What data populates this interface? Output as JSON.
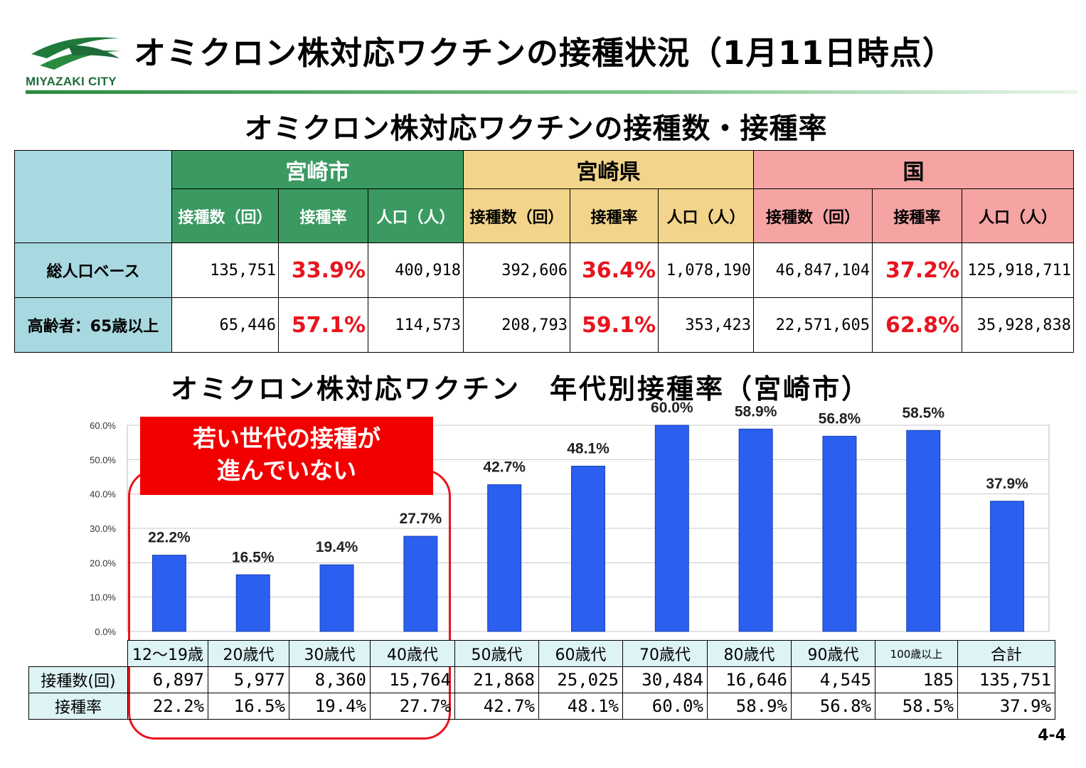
{
  "header": {
    "logo_text": "MIYAZAKI CITY",
    "title": "オミクロン株対応ワクチンの接種状況（1月11日時点）",
    "brand_color": "#2a8a3e"
  },
  "section1": {
    "title": "オミクロン株対応ワクチンの接種数・接種率",
    "groups": [
      "宮崎市",
      "宮崎県",
      "国"
    ],
    "group_colors": [
      "#3a9a62",
      "#f2d48a",
      "#f5a3a3"
    ],
    "col_headers": [
      "接種数（回）",
      "接種率",
      "人口（人）"
    ],
    "rows": [
      {
        "label": "総人口ベース",
        "city": [
          "135,751",
          "33.9%",
          "400,918"
        ],
        "pref": [
          "392,606",
          "36.4%",
          "1,078,190"
        ],
        "nation": [
          "46,847,104",
          "37.2%",
          "125,918,711"
        ]
      },
      {
        "label": "高齢者：65歳以上",
        "city": [
          "65,446",
          "57.1%",
          "114,573"
        ],
        "pref": [
          "208,793",
          "59.1%",
          "353,423"
        ],
        "nation": [
          "22,571,605",
          "62.8%",
          "35,928,838"
        ]
      }
    ]
  },
  "section2": {
    "title": "オミクロン株対応ワクチン　年代別接種率（宮崎市）",
    "callout_line1": "若い世代の接種が",
    "callout_line2": "進んでいない"
  },
  "chart_data": {
    "type": "bar",
    "categories": [
      "12～19歳",
      "20歳代",
      "30歳代",
      "40歳代",
      "50歳代",
      "60歳代",
      "70歳代",
      "80歳代",
      "90歳代",
      "100歳以上",
      "合計"
    ],
    "values": [
      22.2,
      16.5,
      19.4,
      27.7,
      42.7,
      48.1,
      60.0,
      58.9,
      56.8,
      58.5,
      37.9
    ],
    "data_labels": [
      "22.2%",
      "16.5%",
      "19.4%",
      "27.7%",
      "42.7%",
      "48.1%",
      "60.0%",
      "58.9%",
      "56.8%",
      "58.5%",
      "37.9%"
    ],
    "y_ticks": [
      "0.0%",
      "10.0%",
      "20.0%",
      "30.0%",
      "40.0%",
      "50.0%",
      "60.0%"
    ],
    "ylim": [
      0,
      60
    ],
    "bar_color": "#2b5ff0",
    "grid": true
  },
  "age_table": {
    "row_labels": [
      "接種数(回)",
      "接種率"
    ],
    "counts": [
      "6,897",
      "5,977",
      "8,360",
      "15,764",
      "21,868",
      "25,025",
      "30,484",
      "16,646",
      "4,545",
      "185",
      "135,751"
    ],
    "rates": [
      "22.2%",
      "16.5%",
      "19.4%",
      "27.7%",
      "42.7%",
      "48.1%",
      "60.0%",
      "58.9%",
      "56.8%",
      "58.5%",
      "37.9%"
    ]
  },
  "footer": {
    "page_number": "4-4"
  }
}
